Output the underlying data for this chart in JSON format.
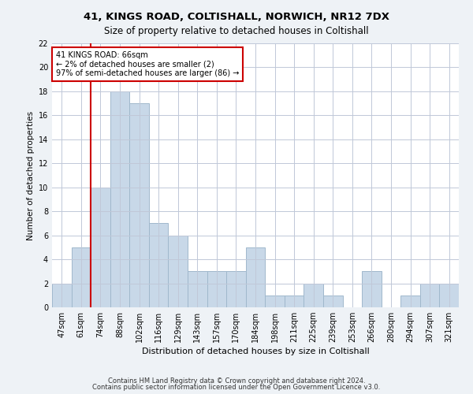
{
  "title1": "41, KINGS ROAD, COLTISHALL, NORWICH, NR12 7DX",
  "title2": "Size of property relative to detached houses in Coltishall",
  "xlabel": "Distribution of detached houses by size in Coltishall",
  "ylabel": "Number of detached properties",
  "categories": [
    "47sqm",
    "61sqm",
    "74sqm",
    "88sqm",
    "102sqm",
    "116sqm",
    "129sqm",
    "143sqm",
    "157sqm",
    "170sqm",
    "184sqm",
    "198sqm",
    "211sqm",
    "225sqm",
    "239sqm",
    "253sqm",
    "266sqm",
    "280sqm",
    "294sqm",
    "307sqm",
    "321sqm"
  ],
  "values": [
    2,
    5,
    10,
    18,
    17,
    7,
    6,
    3,
    3,
    3,
    5,
    1,
    1,
    2,
    1,
    0,
    3,
    0,
    1,
    2,
    2
  ],
  "bar_color": "#c8d8e8",
  "bar_edge_color": "#a0b8cc",
  "vline_x_index": 1,
  "vline_color": "#cc0000",
  "annotation_text": "41 KINGS ROAD: 66sqm\n← 2% of detached houses are smaller (2)\n97% of semi-detached houses are larger (86) →",
  "annotation_box_color": "#ffffff",
  "annotation_box_edge": "#cc0000",
  "ylim": [
    0,
    22
  ],
  "yticks": [
    0,
    2,
    4,
    6,
    8,
    10,
    12,
    14,
    16,
    18,
    20,
    22
  ],
  "footnote1": "Contains HM Land Registry data © Crown copyright and database right 2024.",
  "footnote2": "Contains public sector information licensed under the Open Government Licence v3.0.",
  "background_color": "#eef2f6",
  "plot_bg_color": "#ffffff",
  "grid_color": "#c0c8d8",
  "title1_fontsize": 9.5,
  "title2_fontsize": 8.5,
  "ylabel_fontsize": 7.5,
  "xlabel_fontsize": 8,
  "tick_fontsize": 7,
  "annotation_fontsize": 7,
  "footnote_fontsize": 6
}
